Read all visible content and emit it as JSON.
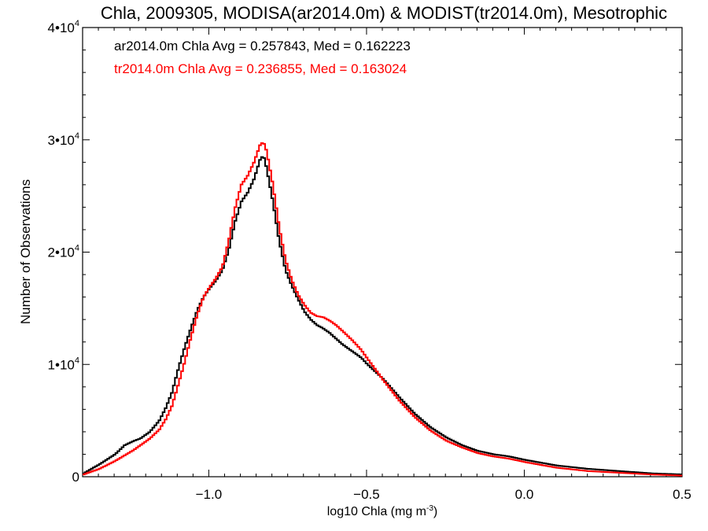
{
  "chart_data": {
    "type": "line",
    "title": "Chla, 2009305, MODISA(ar2014.0m) & MODIST(tr2014.0m), Mesotrophic",
    "xlabel": "log10 Chla (mg m",
    "xlabel_sup": "-3",
    "xlabel_close": ")",
    "ylabel": "Number of Observations",
    "xlim": [
      -1.4,
      0.5
    ],
    "ylim": [
      0,
      40000
    ],
    "xticks": [
      -1.0,
      -0.5,
      0.0,
      0.5
    ],
    "xtick_labels": [
      "−1.0",
      "−0.5",
      "0.0",
      "0.5"
    ],
    "yticks": [
      {
        "value": 0,
        "base": "0",
        "exp": ""
      },
      {
        "value": 10000,
        "base": "1•10",
        "exp": "4"
      },
      {
        "value": 20000,
        "base": "2•10",
        "exp": "4"
      },
      {
        "value": 30000,
        "base": "3•10",
        "exp": "4"
      },
      {
        "value": 40000,
        "base": "4•10",
        "exp": "4"
      }
    ],
    "grid": false,
    "legend_position": "top-left",
    "series": [
      {
        "name": "ar2014.0m Chla Avg = 0.257843, Med = 0.162223",
        "color": "#000000",
        "x": [
          -1.4,
          -1.35,
          -1.3,
          -1.27,
          -1.24,
          -1.22,
          -1.19,
          -1.16,
          -1.14,
          -1.12,
          -1.1,
          -1.08,
          -1.06,
          -1.04,
          -1.02,
          -1.0,
          -0.98,
          -0.96,
          -0.94,
          -0.92,
          -0.9,
          -0.88,
          -0.86,
          -0.84,
          -0.83,
          -0.82,
          -0.8,
          -0.78,
          -0.76,
          -0.74,
          -0.72,
          -0.7,
          -0.68,
          -0.66,
          -0.64,
          -0.62,
          -0.6,
          -0.58,
          -0.55,
          -0.52,
          -0.5,
          -0.45,
          -0.4,
          -0.35,
          -0.3,
          -0.25,
          -0.2,
          -0.15,
          -0.1,
          -0.05,
          0.0,
          0.1,
          0.2,
          0.3,
          0.4,
          0.5
        ],
        "y": [
          300,
          1100,
          2000,
          2800,
          3200,
          3400,
          4000,
          5000,
          6100,
          7500,
          9600,
          11500,
          13200,
          14800,
          16000,
          16800,
          17500,
          18400,
          20200,
          22700,
          24500,
          25300,
          26500,
          28300,
          28600,
          27500,
          24500,
          21000,
          18400,
          17000,
          15800,
          14700,
          14000,
          13500,
          13200,
          12800,
          12300,
          11800,
          11200,
          10600,
          10000,
          8700,
          7100,
          5600,
          4400,
          3500,
          2800,
          2300,
          2000,
          1800,
          1500,
          1000,
          700,
          500,
          300,
          200
        ]
      },
      {
        "name": "tr2014.0m Chla Avg = 0.236855, Med = 0.163024",
        "color": "#ff0000",
        "x": [
          -1.4,
          -1.35,
          -1.3,
          -1.27,
          -1.24,
          -1.22,
          -1.19,
          -1.16,
          -1.14,
          -1.12,
          -1.1,
          -1.08,
          -1.06,
          -1.04,
          -1.02,
          -1.0,
          -0.98,
          -0.96,
          -0.94,
          -0.92,
          -0.9,
          -0.88,
          -0.86,
          -0.84,
          -0.83,
          -0.82,
          -0.8,
          -0.78,
          -0.76,
          -0.74,
          -0.72,
          -0.7,
          -0.68,
          -0.66,
          -0.64,
          -0.62,
          -0.6,
          -0.58,
          -0.55,
          -0.52,
          -0.5,
          -0.45,
          -0.4,
          -0.35,
          -0.3,
          -0.25,
          -0.2,
          -0.15,
          -0.1,
          -0.05,
          0.0,
          0.1,
          0.2,
          0.3,
          0.4,
          0.5
        ],
        "y": [
          200,
          700,
          1400,
          1900,
          2400,
          2800,
          3400,
          4200,
          5100,
          6300,
          8200,
          10200,
          12400,
          14400,
          16000,
          16900,
          17700,
          18700,
          21000,
          23900,
          26000,
          26800,
          28000,
          29600,
          29800,
          29000,
          26000,
          22200,
          19300,
          17500,
          16200,
          15300,
          14600,
          14300,
          14200,
          13900,
          13500,
          13000,
          12200,
          11300,
          10500,
          8600,
          6800,
          5300,
          4100,
          3200,
          2600,
          2100,
          1800,
          1600,
          1300,
          800,
          500,
          350,
          200,
          100
        ]
      }
    ]
  }
}
